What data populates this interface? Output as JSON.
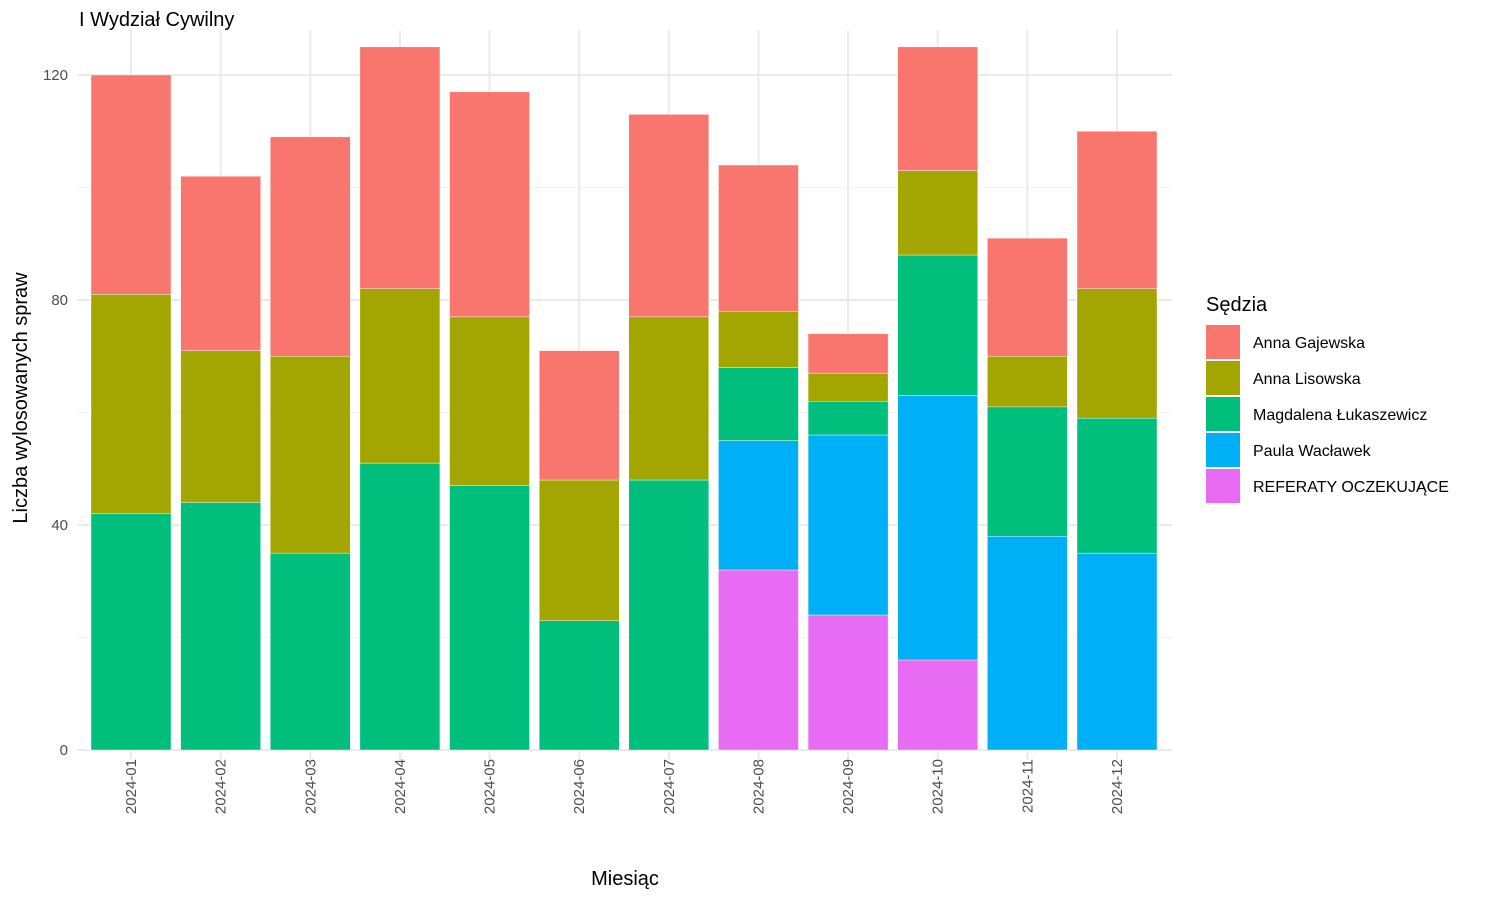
{
  "chart_data": {
    "type": "bar",
    "stacked": true,
    "title": "I Wydział Cywilny",
    "xlabel": "Miesiąc",
    "ylabel": "Liczba wylosowanych spraw",
    "ylim": [
      0,
      128
    ],
    "yticks": [
      0,
      40,
      80,
      120
    ],
    "grid": true,
    "legend": {
      "title": "Sędzia",
      "position": "right"
    },
    "categories": [
      "2024-01",
      "2024-02",
      "2024-03",
      "2024-04",
      "2024-05",
      "2024-06",
      "2024-07",
      "2024-08",
      "2024-09",
      "2024-10",
      "2024-11",
      "2024-12"
    ],
    "series": [
      {
        "name": "REFERATY OCZEKUJĄCE",
        "color": "#E76BF3",
        "values": [
          0,
          0,
          0,
          0,
          0,
          0,
          0,
          32,
          24,
          16,
          0,
          0
        ]
      },
      {
        "name": "Paula Wacławek",
        "color": "#00B0F6",
        "values": [
          0,
          0,
          0,
          0,
          0,
          0,
          0,
          23,
          32,
          47,
          38,
          35
        ]
      },
      {
        "name": "Magdalena Łukaszewicz",
        "color": "#00BF7D",
        "values": [
          42,
          44,
          35,
          51,
          47,
          23,
          48,
          13,
          6,
          25,
          23,
          24
        ]
      },
      {
        "name": "Anna Lisowska",
        "color": "#A3A500",
        "values": [
          39,
          27,
          35,
          31,
          30,
          25,
          29,
          10,
          5,
          15,
          9,
          23
        ]
      },
      {
        "name": "Anna Gajewska",
        "color": "#F8766D",
        "values": [
          39,
          31,
          39,
          43,
          40,
          23,
          36,
          26,
          7,
          22,
          21,
          28
        ]
      }
    ],
    "legend_order": [
      "Anna Gajewska",
      "Anna Lisowska",
      "Magdalena Łukaszewicz",
      "Paula Wacławek",
      "REFERATY OCZEKUJĄCE"
    ]
  }
}
